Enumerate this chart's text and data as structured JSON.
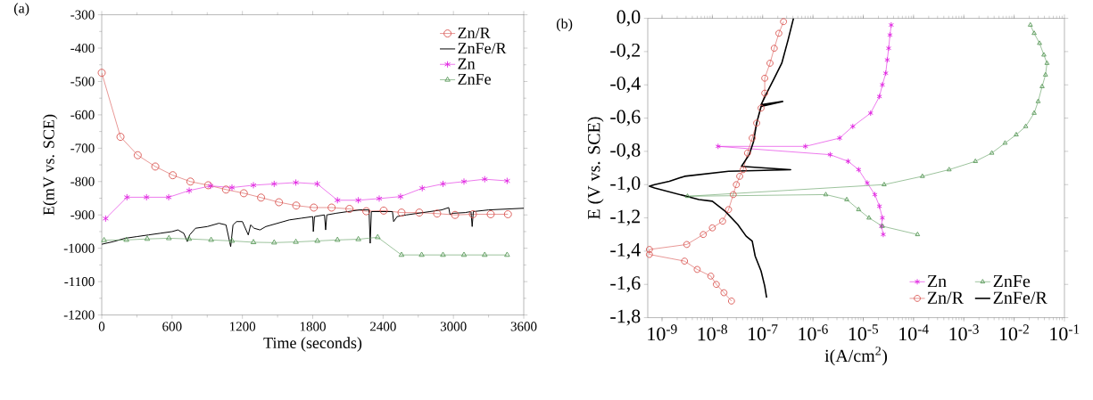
{
  "chart_data": [
    {
      "type": "line",
      "title": "(a)",
      "xlabel": "Time (seconds)",
      "ylabel": "E(mV vs. SCE)",
      "xlim": [
        0,
        3600
      ],
      "ylim": [
        -1200,
        -300
      ],
      "xticks": [
        0,
        600,
        1200,
        1800,
        2400,
        3000,
        3600
      ],
      "yticks": [
        -1200,
        -1100,
        -1000,
        -900,
        -800,
        -700,
        -600,
        -500,
        -400,
        -300
      ],
      "legend": "top right",
      "series": [
        {
          "name": "Zn/R",
          "color": "#d9534f",
          "marker": "circle",
          "x": [
            0,
            160,
            307,
            457,
            606,
            756,
            908,
            1060,
            1212,
            1359,
            1512,
            1659,
            1809,
            1961,
            2113,
            2257,
            2405,
            2557,
            2709,
            2861,
            3014,
            3166,
            3318,
            3465
          ],
          "values": [
            -474,
            -666,
            -721,
            -755,
            -781,
            -800,
            -811,
            -824,
            -835,
            -848,
            -862,
            -872,
            -878,
            -878,
            -882,
            -889,
            -887,
            -893,
            -893,
            -896,
            -900,
            -898,
            -898,
            -898
          ]
        },
        {
          "name": "ZnFe/R",
          "color": "#000000",
          "marker": "none",
          "x": [
            0,
            100,
            200,
            300,
            400,
            500,
            600,
            650,
            700,
            730,
            750,
            800,
            900,
            1000,
            1060,
            1100,
            1120,
            1150,
            1200,
            1250,
            1270,
            1300,
            1350,
            1400,
            1500,
            1600,
            1700,
            1800,
            1805,
            1815,
            1900,
            1910,
            1920,
            2000,
            2100,
            2200,
            2280,
            2290,
            2300,
            2400,
            2480,
            2490,
            2520,
            2600,
            2800,
            2900,
            2960,
            2970,
            3000,
            3100,
            3150,
            3160,
            3170,
            3300,
            3600
          ],
          "values": [
            -988,
            -980,
            -970,
            -965,
            -960,
            -955,
            -950,
            -945,
            -955,
            -980,
            -960,
            -940,
            -935,
            -925,
            -930,
            -995,
            -930,
            -920,
            -920,
            -960,
            -930,
            -940,
            -945,
            -935,
            -925,
            -915,
            -910,
            -905,
            -950,
            -905,
            -900,
            -945,
            -900,
            -895,
            -890,
            -885,
            -885,
            -985,
            -890,
            -890,
            -890,
            -920,
            -905,
            -900,
            -890,
            -885,
            -878,
            -898,
            -895,
            -893,
            -890,
            -935,
            -890,
            -885,
            -880
          ]
        },
        {
          "name": "Zn",
          "color": "#e020e0",
          "marker": "cross",
          "x": [
            33,
            215,
            382,
            571,
            746,
            928,
            1111,
            1294,
            1471,
            1656,
            1839,
            2011,
            2189,
            2367,
            2549,
            2734,
            2911,
            3090,
            3267,
            3458
          ],
          "values": [
            -911,
            -847,
            -847,
            -847,
            -827,
            -813,
            -818,
            -811,
            -807,
            -803,
            -807,
            -856,
            -856,
            -851,
            -845,
            -820,
            -807,
            -800,
            -793,
            -798
          ]
        },
        {
          "name": "ZnFe",
          "color": "#5a9a5a",
          "marker": "triangle",
          "x": [
            20,
            210,
            388,
            573,
            745,
            933,
            1111,
            1294,
            1471,
            1656,
            1839,
            2011,
            2189,
            2354,
            2557,
            2729,
            2911,
            3090,
            3267,
            3458
          ],
          "values": [
            -976,
            -975,
            -972,
            -970,
            -972,
            -975,
            -978,
            -982,
            -983,
            -981,
            -978,
            -975,
            -973,
            -967,
            -1020,
            -1020,
            -1020,
            -1020,
            -1020,
            -1020
          ]
        }
      ]
    },
    {
      "type": "line",
      "title": "(b)",
      "xlabel": "i(A/cm$^{2}$)",
      "ylabel": "E (V vs. SCE)",
      "log": "x",
      "xlim": [
        5.2e-10,
        0.1
      ],
      "ylim": [
        -1.8,
        0.0
      ],
      "legend": "bottom right",
      "xticks": [
        {
          "value": 1e-09,
          "label": "10$^{-9}$"
        },
        {
          "value": 1e-08,
          "label": "10$^{-8}$"
        },
        {
          "value": 1e-07,
          "label": "10$^{-7}$"
        },
        {
          "value": 1e-06,
          "label": "10$^{-6}$"
        },
        {
          "value": 1e-05,
          "label": "10$^{-5}$"
        },
        {
          "value": 0.0001,
          "label": "10$^{-4}$"
        },
        {
          "value": 0.001,
          "label": "10$^{-3}$"
        },
        {
          "value": 0.01,
          "label": "10$^{-2}$"
        },
        {
          "value": 0.1,
          "label": "10$^{-1}$"
        }
      ],
      "yticks": [
        {
          "value": -1.8,
          "label": "-1,8"
        },
        {
          "value": -1.6,
          "label": "-1,6"
        },
        {
          "value": -1.4,
          "label": "-1,4"
        },
        {
          "value": -1.2,
          "label": "-1,2"
        },
        {
          "value": -1.0,
          "label": "-1,0"
        },
        {
          "value": -0.8,
          "label": "-0,8"
        },
        {
          "value": -0.6,
          "label": "-0,6"
        },
        {
          "value": -0.4,
          "label": "-0,4"
        },
        {
          "value": -0.2,
          "label": "-0,2"
        },
        {
          "value": 0.0,
          "label": "0,0"
        }
      ],
      "series": [
        {
          "name": "Zn",
          "color": "#e020e0",
          "marker": "cross",
          "x": [
            2.5e-05,
            2.3e-05,
            2.4e-05,
            2.1e-05,
            1.7e-05,
            1.2e-05,
            8.1e-06,
            5e-06,
            2.2e-06,
            1.3e-08,
            7.1e-07,
            3.4e-06,
            6.2e-06,
            1.4e-05,
            2.1e-05,
            2.4e-05,
            2.8e-05,
            3e-05,
            3.2e-05,
            3.4e-05,
            3.6e-05
          ],
          "values": [
            -1.3,
            -1.25,
            -1.2,
            -1.13,
            -1.06,
            -0.99,
            -0.91,
            -0.86,
            -0.82,
            -0.77,
            -0.77,
            -0.72,
            -0.65,
            -0.57,
            -0.47,
            -0.4,
            -0.33,
            -0.25,
            -0.18,
            -0.1,
            -0.04
          ]
        },
        {
          "name": "ZnFe",
          "color": "#5a9a5a",
          "marker": "triangle",
          "x": [
            0.00012,
            2.4e-05,
            1.3e-05,
            8.1e-06,
            4.7e-06,
            1.8e-06,
            3.2e-09,
            2.6e-05,
            0.00015,
            0.00051,
            0.0017,
            0.0036,
            0.0066,
            0.011,
            0.017,
            0.025,
            0.03,
            0.036,
            0.042,
            0.045,
            0.039,
            0.032,
            0.025,
            0.021
          ],
          "values": [
            -1.3,
            -1.25,
            -1.2,
            -1.15,
            -1.09,
            -1.06,
            -1.07,
            -1.0,
            -0.95,
            -0.91,
            -0.86,
            -0.81,
            -0.75,
            -0.7,
            -0.65,
            -0.57,
            -0.5,
            -0.41,
            -0.34,
            -0.27,
            -0.22,
            -0.15,
            -0.09,
            -0.04
          ]
        },
        {
          "name": "Zn/R",
          "color": "#d9534f",
          "marker": "circle",
          "x": [
            2.4e-08,
            1.7e-08,
            1.2e-08,
            9.3e-09,
            5e-09,
            2.8e-09,
            5.6e-10,
            5.6e-10,
            3.1e-09,
            6.6e-09,
            1e-08,
            1.6e-08,
            2.1e-08,
            2.6e-08,
            3e-08,
            3.5e-08,
            4.1e-08,
            5e-08,
            6.2e-08,
            7.6e-08,
            9.3e-08,
            1.1e-07,
            1.1e-07,
            1.4e-07,
            1.7e-07,
            2.1e-07,
            2.6e-07
          ],
          "values": [
            -1.7,
            -1.65,
            -1.6,
            -1.55,
            -1.51,
            -1.46,
            -1.42,
            -1.39,
            -1.36,
            -1.3,
            -1.26,
            -1.22,
            -1.15,
            -1.06,
            -1.0,
            -0.95,
            -0.91,
            -0.81,
            -0.72,
            -0.63,
            -0.54,
            -0.45,
            -0.36,
            -0.27,
            -0.18,
            -0.09,
            -0.02
          ]
        },
        {
          "name": "ZnFe/R",
          "color": "#000000",
          "marker": "none",
          "x": [
            4.1e-07,
            3.2e-07,
            2.4e-07,
            1.7e-07,
            1.2e-07,
            9.3e-08,
            2.5e-07,
            9.3e-08,
            7.6e-08,
            6.6e-08,
            5.4e-08,
            3.8e-08,
            3.6e-07,
            2.1e-08,
            2.8e-09,
            1.4e-09,
            7.1e-10,
            5.6e-10,
            7.1e-10,
            5.4e-09,
            1e-08,
            1.8e-08,
            3.2e-08,
            4.7e-08,
            6.2e-08,
            7.1e-08,
            9.3e-08,
            1.1e-07,
            1.2e-07
          ],
          "values": [
            0.0,
            -0.13,
            -0.27,
            -0.36,
            -0.45,
            -0.52,
            -0.5,
            -0.53,
            -0.63,
            -0.74,
            -0.82,
            -0.89,
            -0.91,
            -0.92,
            -0.95,
            -0.98,
            -1.0,
            -1.01,
            -1.02,
            -1.09,
            -1.1,
            -1.16,
            -1.24,
            -1.31,
            -1.34,
            -1.43,
            -1.52,
            -1.61,
            -1.68
          ]
        }
      ]
    }
  ]
}
